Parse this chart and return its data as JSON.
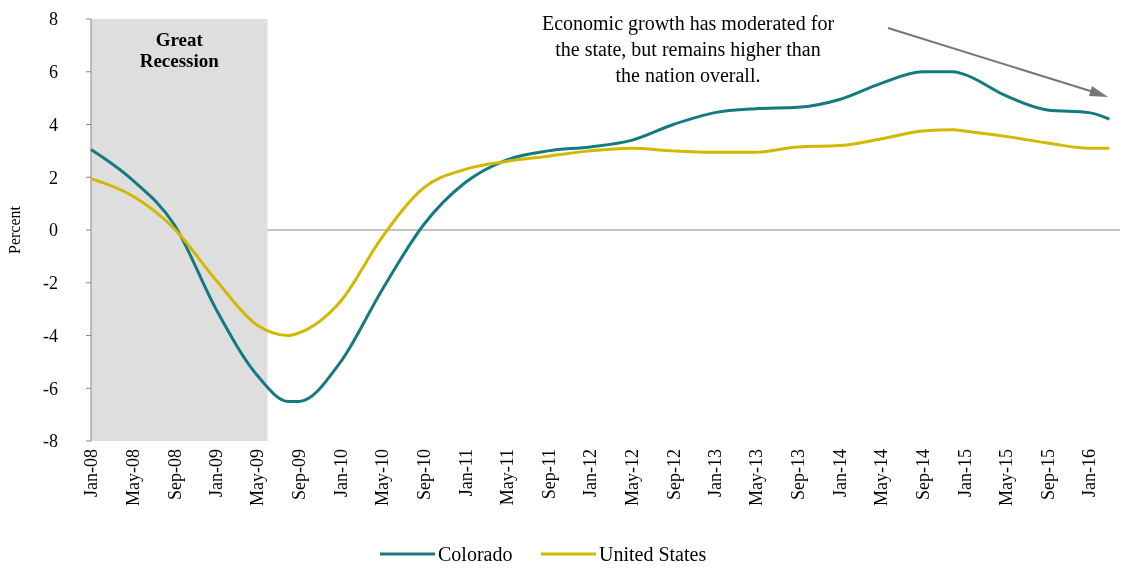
{
  "chart_data": {
    "type": "line",
    "ylabel": "Percent",
    "x": [
      "2008-01",
      "2008-05",
      "2008-09",
      "2009-01",
      "2009-05",
      "2009-08",
      "2009-09",
      "2010-01",
      "2010-05",
      "2010-09",
      "2011-01",
      "2011-05",
      "2011-09",
      "2012-01",
      "2012-05",
      "2012-09",
      "2013-01",
      "2013-05",
      "2013-09",
      "2014-01",
      "2014-05",
      "2014-09",
      "2014-12",
      "2015-01",
      "2015-05",
      "2015-09",
      "2016-01",
      "2016-03"
    ],
    "series": [
      {
        "name": "Colorado",
        "color": "#137b80",
        "values": [
          3.05,
          1.9,
          0.2,
          -3.0,
          -5.5,
          -6.5,
          -6.5,
          -5.0,
          -2.3,
          0.2,
          1.8,
          2.65,
          3.0,
          3.15,
          3.4,
          4.0,
          4.45,
          4.6,
          4.65,
          4.95,
          5.55,
          6.0,
          6.0,
          5.9,
          5.1,
          4.55,
          4.45,
          4.2
        ]
      },
      {
        "name": "United States",
        "color": "#d4b700",
        "values": [
          1.95,
          1.3,
          0.05,
          -1.9,
          -3.6,
          -4.0,
          -3.9,
          -2.7,
          -0.3,
          1.6,
          2.3,
          2.6,
          2.8,
          3.0,
          3.1,
          3.0,
          2.95,
          2.95,
          3.15,
          3.2,
          3.45,
          3.75,
          3.8,
          3.75,
          3.55,
          3.3,
          3.1,
          3.1
        ]
      }
    ],
    "xlim": [
      "2008-01",
      "2016-04"
    ],
    "xticks": [
      {
        "value": "2008-01",
        "label": "Jan-08"
      },
      {
        "value": "2008-05",
        "label": "May-08"
      },
      {
        "value": "2008-09",
        "label": "Sep-08"
      },
      {
        "value": "2009-01",
        "label": "Jan-09"
      },
      {
        "value": "2009-05",
        "label": "May-09"
      },
      {
        "value": "2009-09",
        "label": "Sep-09"
      },
      {
        "value": "2010-01",
        "label": "Jan-10"
      },
      {
        "value": "2010-05",
        "label": "May-10"
      },
      {
        "value": "2010-09",
        "label": "Sep-10"
      },
      {
        "value": "2011-01",
        "label": "Jan-11"
      },
      {
        "value": "2011-05",
        "label": "May-11"
      },
      {
        "value": "2011-09",
        "label": "Sep-11"
      },
      {
        "value": "2012-01",
        "label": "Jan-12"
      },
      {
        "value": "2012-05",
        "label": "May-12"
      },
      {
        "value": "2012-09",
        "label": "Sep-12"
      },
      {
        "value": "2013-01",
        "label": "Jan-13"
      },
      {
        "value": "2013-05",
        "label": "May-13"
      },
      {
        "value": "2013-09",
        "label": "Sep-13"
      },
      {
        "value": "2014-01",
        "label": "Jan-14"
      },
      {
        "value": "2014-05",
        "label": "May-14"
      },
      {
        "value": "2014-09",
        "label": "Sep-14"
      },
      {
        "value": "2015-01",
        "label": "Jan-15"
      },
      {
        "value": "2015-05",
        "label": "May-15"
      },
      {
        "value": "2015-09",
        "label": "Sep-15"
      },
      {
        "value": "2016-01",
        "label": "Jan-16"
      }
    ],
    "ylim": [
      -8,
      8
    ],
    "yticks": [
      -8,
      -6,
      -4,
      -2,
      0,
      2,
      4,
      6,
      8
    ],
    "bands": [
      {
        "axis": "x",
        "from": "2008-01",
        "to": "2009-06",
        "label": "Great Recession",
        "color": "#dedede"
      }
    ],
    "annotations": [
      "Economic growth has moderated for the state, but remains higher than the nation overall."
    ],
    "ref_lines": [
      {
        "axis": "y",
        "value": 0,
        "color": "#888888"
      }
    ],
    "legend": "bottom",
    "grid": false,
    "marker": "none",
    "line_style": "solid"
  }
}
